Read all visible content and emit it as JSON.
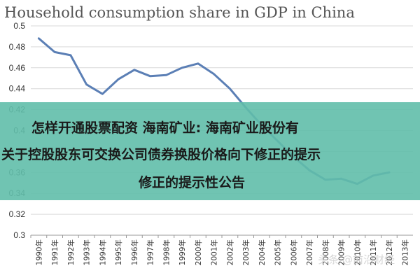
{
  "chart_data": {
    "type": "line",
    "title": "Household consumption share in GDP in China",
    "xlabel": "",
    "ylabel": "",
    "categories": [
      "1990年",
      "1991年",
      "1992年",
      "1993年",
      "1994年",
      "1995年",
      "1996年",
      "1997年",
      "1998年",
      "1999年",
      "2000年",
      "2001年",
      "2002年",
      "2003年",
      "2004年",
      "2005年",
      "2006年",
      "2007年",
      "2008年",
      "2009年",
      "2010年",
      "2011年",
      "2012年",
      "2013年"
    ],
    "series": [
      {
        "values": [
          0.488,
          0.475,
          0.472,
          0.444,
          0.435,
          0.449,
          0.458,
          0.452,
          0.453,
          0.46,
          0.464,
          0.454,
          0.44,
          0.422,
          0.405,
          0.39,
          0.375,
          0.362,
          0.353,
          0.354,
          0.349,
          0.357,
          0.36,
          null
        ]
      }
    ],
    "ylim": [
      0.3,
      0.5
    ],
    "yticks": [
      "0.3",
      "0.32",
      "0.34",
      "0.36",
      "0.38",
      "0.4",
      "0.42",
      "0.44",
      "0.46",
      "0.48",
      "0.5"
    ],
    "grid": true,
    "line_color": "#5b7fb5"
  },
  "banner": {
    "line1": "怎样开通股票配资 海南矿业: 海南矿业股份有",
    "line2": "关于控股股东可交换公司债券换股价格向下修正的提示",
    "line3": "修正的提示性公告"
  },
  "watermark": "头条 @前沿财经"
}
